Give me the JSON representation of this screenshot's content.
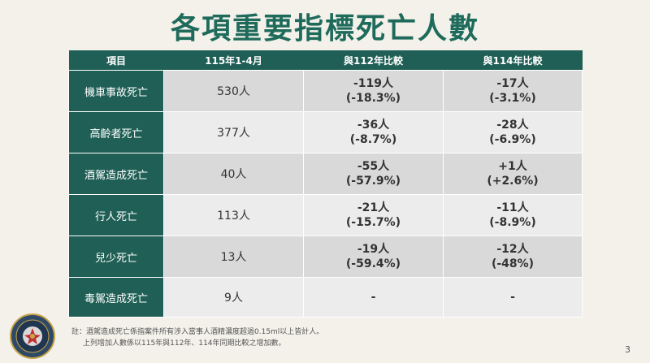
{
  "title": "各項重要指標死亡人數",
  "table": {
    "headers": [
      "項目",
      "115年1-4月",
      "與112年比較",
      "與114年比較"
    ],
    "rows": [
      {
        "item": "機車事故死亡",
        "total": "530人",
        "vs112": {
          "count": "-119人",
          "pct": "(-18.3%)"
        },
        "vs114": {
          "count": "-17人",
          "pct": "(-3.1%)"
        }
      },
      {
        "item": "高齡者死亡",
        "total": "377人",
        "vs112": {
          "count": "-36人",
          "pct": "(-8.7%)"
        },
        "vs114": {
          "count": "-28人",
          "pct": "(-6.9%)"
        }
      },
      {
        "item": "酒駕造成死亡",
        "total": "40人",
        "vs112": {
          "count": "-55人",
          "pct": "(-57.9%)"
        },
        "vs114": {
          "count": "+1人",
          "pct": "(+2.6%)"
        }
      },
      {
        "item": "行人死亡",
        "total": "113人",
        "vs112": {
          "count": "-21人",
          "pct": "(-15.7%)"
        },
        "vs114": {
          "count": "-11人",
          "pct": "(-8.9%)"
        }
      },
      {
        "item": "兒少死亡",
        "total": "13人",
        "vs112": {
          "count": "-19人",
          "pct": "(-59.4%)"
        },
        "vs114": {
          "count": "-12人",
          "pct": "(-48%)"
        }
      },
      {
        "item": "毒駕造成死亡",
        "total": "9人",
        "vs112": {
          "count": "-",
          "pct": ""
        },
        "vs114": {
          "count": "-",
          "pct": ""
        }
      }
    ]
  },
  "notes": {
    "line1": "註：酒駕造成死亡係指案件所有涉入當事人酒精濃度超過0.15ml以上皆計人。",
    "line2": "上列增加人數係以115年與112年、114年同期比較之增加數。"
  },
  "page_number": "3",
  "colors": {
    "title": "#1f6b5b",
    "header": "#1f5f55",
    "increase": "#e02020"
  }
}
